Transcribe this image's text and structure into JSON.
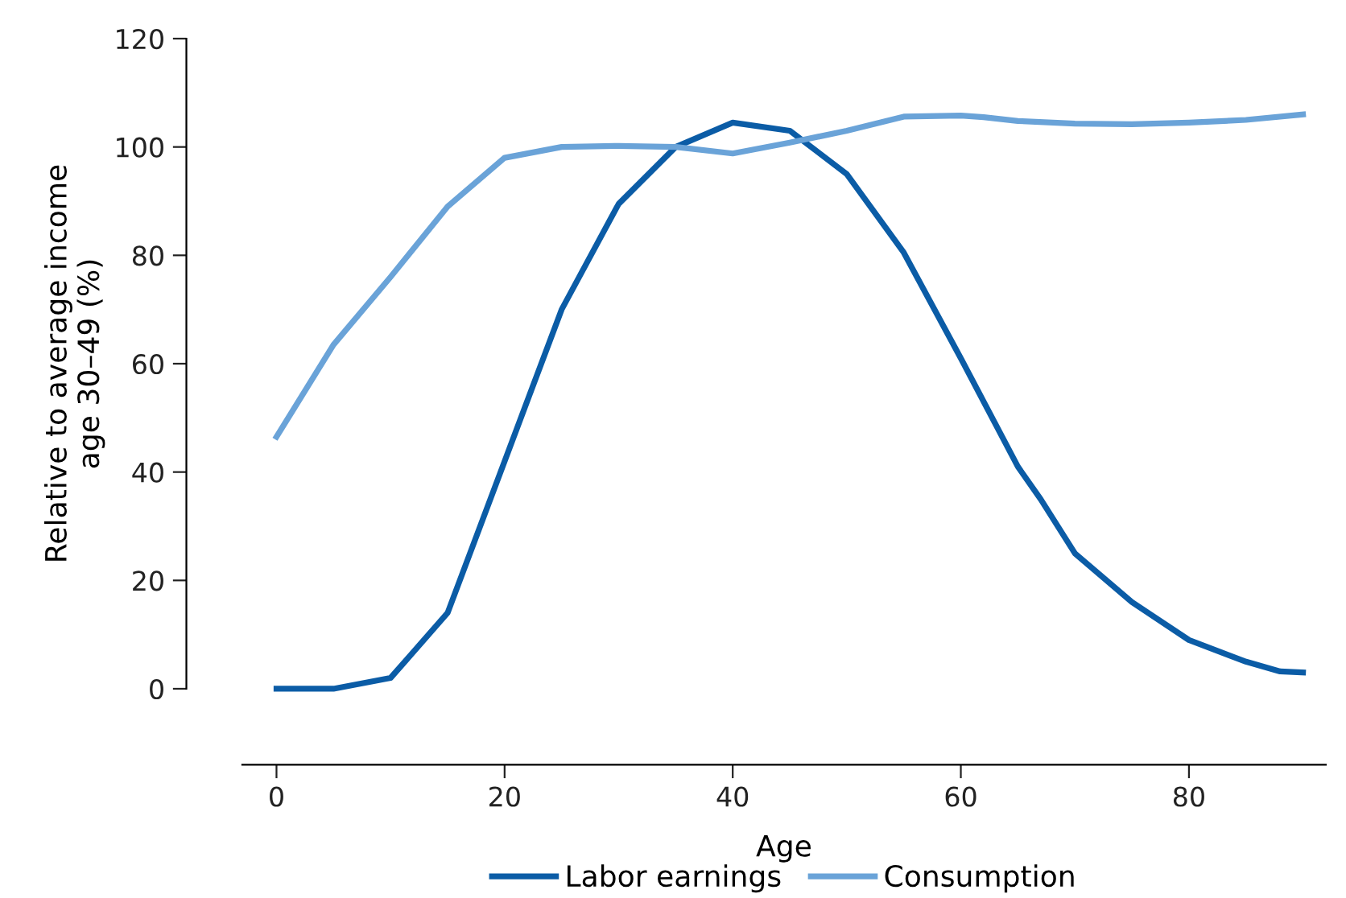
{
  "chart_data": {
    "type": "line",
    "xlabel": "Age",
    "ylabel": "Relative to average income\nage 30–49 (%)",
    "xlim": [
      -3,
      92
    ],
    "ylim": [
      0,
      120
    ],
    "xticks": [
      0,
      20,
      40,
      60,
      80
    ],
    "yticks": [
      0,
      20,
      40,
      60,
      80,
      100,
      120
    ],
    "grid": false,
    "legend": "bottom",
    "marker": "none",
    "line_style": "solid",
    "series": [
      {
        "name": "Labor earnings",
        "color": "#0b5ca6",
        "x": [
          0,
          5,
          10,
          15,
          20,
          25,
          30,
          35,
          40,
          45,
          50,
          55,
          60,
          65,
          67,
          70,
          75,
          80,
          85,
          88,
          90
        ],
        "values": [
          0,
          0,
          2,
          14,
          42,
          70,
          89.5,
          100,
          104.5,
          103,
          95,
          80.5,
          61,
          41,
          35,
          25,
          16,
          9,
          5,
          3.2,
          3
        ]
      },
      {
        "name": "Consumption",
        "color": "#6aa3d8",
        "x": [
          0,
          5,
          10,
          15,
          20,
          25,
          30,
          35,
          40,
          45,
          50,
          55,
          60,
          62,
          65,
          70,
          75,
          80,
          85,
          90
        ],
        "values": [
          46.5,
          63.5,
          76,
          89,
          98,
          100,
          100.2,
          100,
          98.8,
          100.8,
          103,
          105.6,
          105.8,
          105.5,
          104.8,
          104.3,
          104.2,
          104.5,
          105,
          106
        ]
      }
    ]
  }
}
